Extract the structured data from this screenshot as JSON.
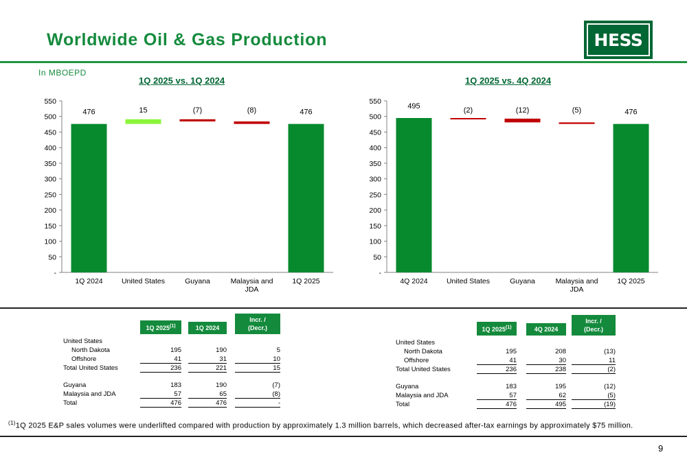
{
  "header": {
    "title": "Worldwide Oil & Gas Production",
    "logo_text": "HESS",
    "units": "In MBOEPD"
  },
  "colors": {
    "title_green": "#148a3c",
    "bar_green": "#078a2e",
    "increase_green": "#8bf53a",
    "decrease_red": "#c00000"
  },
  "chart_data": [
    {
      "type": "bar",
      "subtype": "waterfall",
      "title": "1Q 2025 vs. 1Q 2024",
      "categories": [
        "1Q 2024",
        "United States",
        "Guyana",
        "Malaysia and JDA",
        "1Q 2025"
      ],
      "values": [
        476,
        15,
        -7,
        -8,
        476
      ],
      "labels": [
        "476",
        "15",
        "(7)",
        "(8)",
        "476"
      ],
      "bar_kinds": [
        "total",
        "delta",
        "delta",
        "delta",
        "total"
      ],
      "ylim": [
        0,
        550
      ],
      "yticks": [
        0,
        50,
        100,
        150,
        200,
        250,
        300,
        350,
        400,
        450,
        500,
        550
      ],
      "ytick_labels": [
        "-",
        "50",
        "100",
        "150",
        "200",
        "250",
        "300",
        "350",
        "400",
        "450",
        "500",
        "550"
      ],
      "grid": false,
      "xlabel": "",
      "ylabel": ""
    },
    {
      "type": "bar",
      "subtype": "waterfall",
      "title": "1Q 2025 vs. 4Q 2024",
      "categories": [
        "4Q 2024",
        "United States",
        "Guyana",
        "Malaysia and JDA",
        "1Q 2025"
      ],
      "values": [
        495,
        -2,
        -12,
        -5,
        476
      ],
      "labels": [
        "495",
        "(2)",
        "(12)",
        "(5)",
        "476"
      ],
      "bar_kinds": [
        "total",
        "delta",
        "delta",
        "delta",
        "total"
      ],
      "ylim": [
        0,
        550
      ],
      "yticks": [
        0,
        50,
        100,
        150,
        200,
        250,
        300,
        350,
        400,
        450,
        500,
        550
      ],
      "ytick_labels": [
        "-",
        "50",
        "100",
        "150",
        "200",
        "250",
        "300",
        "350",
        "400",
        "450",
        "500",
        "550"
      ],
      "grid": false,
      "xlabel": "",
      "ylabel": ""
    }
  ],
  "tables": {
    "left": {
      "col1": "1Q 2025",
      "col1_sup": "(1)",
      "col2": "1Q 2024",
      "col3_line1": "Incr. /",
      "col3_line2": "(Decr.)",
      "rows": {
        "us": "United States",
        "nd": {
          "label": "North Dakota",
          "a": "195",
          "b": "190",
          "c": "5"
        },
        "off": {
          "label": "Offshore",
          "a": "41",
          "b": "31",
          "c": "10"
        },
        "tus": {
          "label": "Total United States",
          "a": "236",
          "b": "221",
          "c": "15"
        },
        "guy": {
          "label": "Guyana",
          "a": "183",
          "b": "190",
          "c": "(7)"
        },
        "mal": {
          "label": "Malaysia and JDA",
          "a": "57",
          "b": "65",
          "c": "(8)"
        },
        "tot": {
          "label": "Total",
          "a": "476",
          "b": "476",
          "c": "-"
        }
      }
    },
    "right": {
      "col1": "1Q 2025",
      "col1_sup": "(1)",
      "col2": "4Q 2024",
      "col3_line1": "Incr. /",
      "col3_line2": "(Decr.)",
      "rows": {
        "us": "United States",
        "nd": {
          "label": "North Dakota",
          "a": "195",
          "b": "208",
          "c": "(13)"
        },
        "off": {
          "label": "Offshore",
          "a": "41",
          "b": "30",
          "c": "11"
        },
        "tus": {
          "label": "Total United States",
          "a": "236",
          "b": "238",
          "c": "(2)"
        },
        "guy": {
          "label": "Guyana",
          "a": "183",
          "b": "195",
          "c": "(12)"
        },
        "mal": {
          "label": "Malaysia and JDA",
          "a": "57",
          "b": "62",
          "c": "(5)"
        },
        "tot": {
          "label": "Total",
          "a": "476",
          "b": "495",
          "c": "(19)"
        }
      }
    }
  },
  "footnote": {
    "marker": "(1)",
    "text": "1Q 2025 E&P sales volumes were underlifted compared with production by approximately 1.3 million barrels, which decreased after-tax earnings by approximately $75 million."
  },
  "page_number": "9"
}
